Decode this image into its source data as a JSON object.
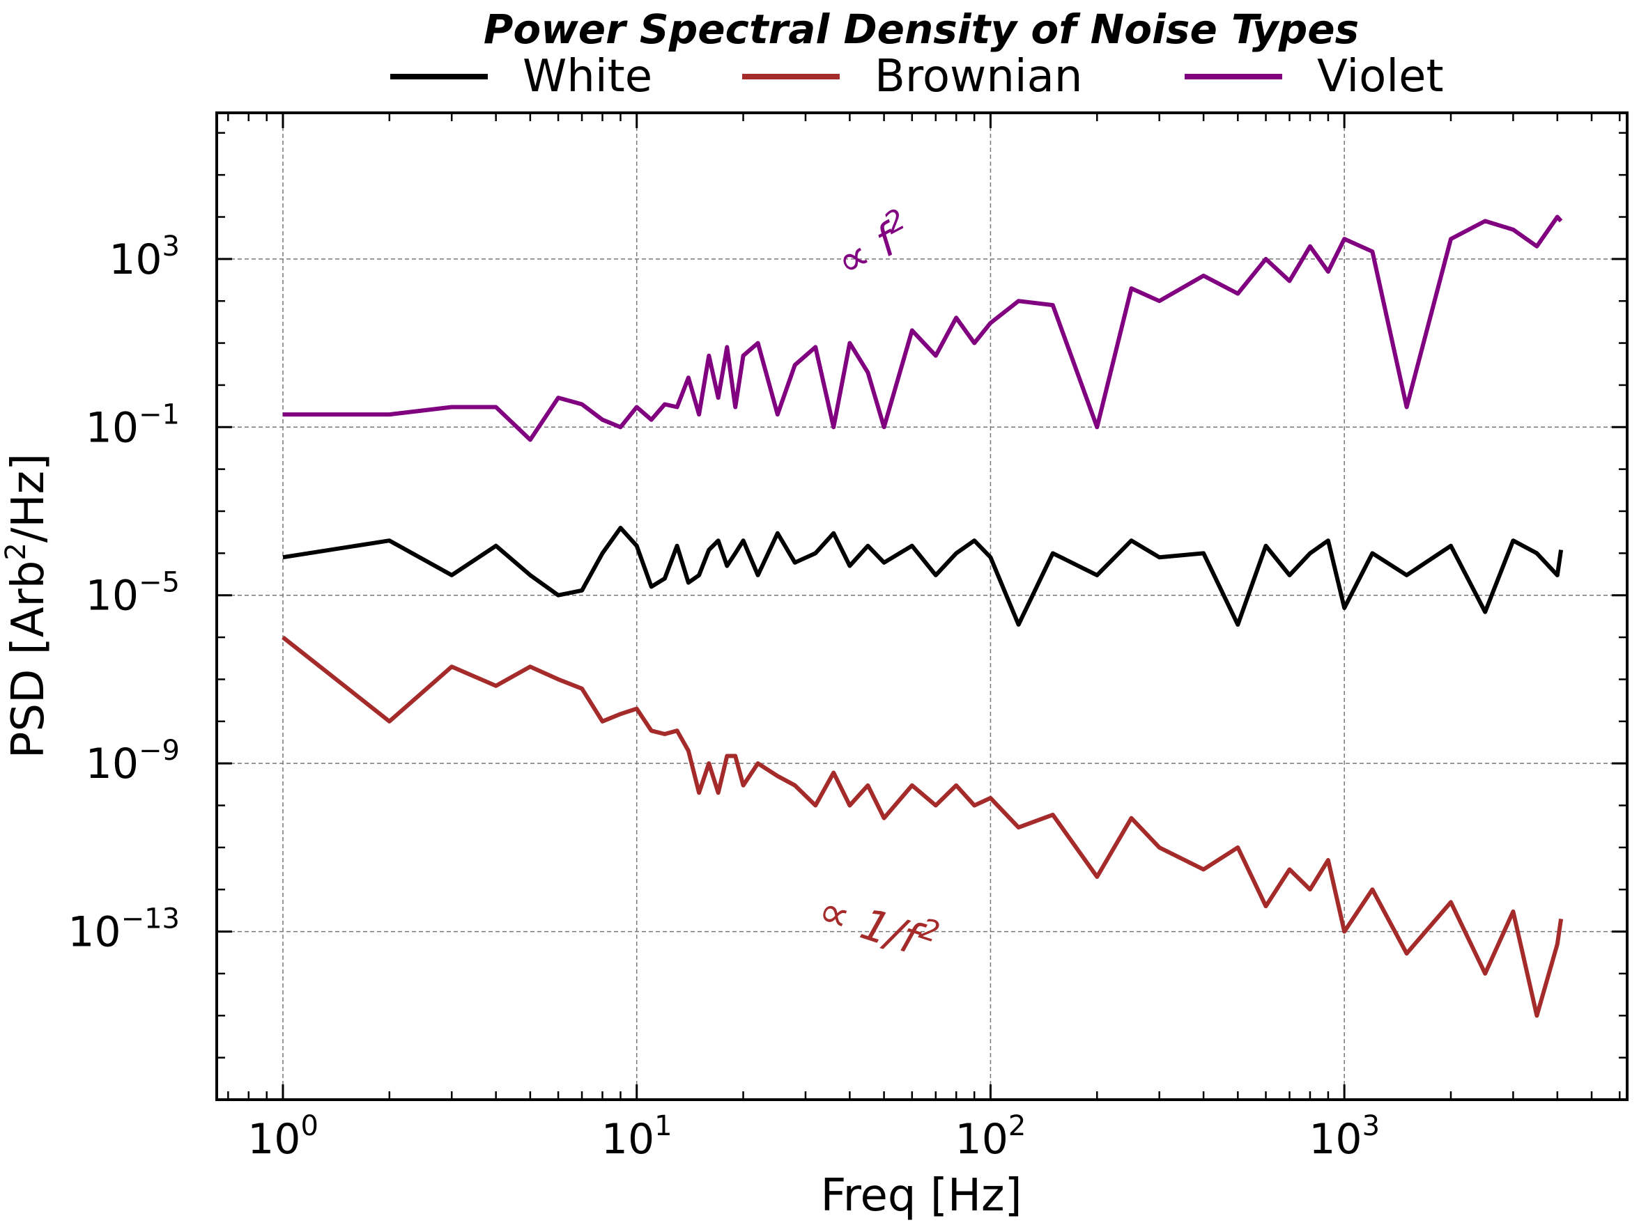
{
  "chart_data": {
    "type": "line",
    "title": "Power Spectral Density of Noise Types",
    "xlabel": "Freq [Hz]",
    "ylabel_main": "PSD [Arb",
    "ylabel_sup": "2",
    "ylabel_tail": "/Hz]",
    "x_scale": "log",
    "y_scale": "log",
    "xlim": [
      0.65,
      6300
    ],
    "ylim": [
      1e-17,
      3000000.0
    ],
    "grid": true,
    "legend_placement": "top-center, above plot",
    "x_ticks": [
      {
        "value": 1,
        "base": "10",
        "exp": "0"
      },
      {
        "value": 10,
        "base": "10",
        "exp": "1"
      },
      {
        "value": 100,
        "base": "10",
        "exp": "2"
      },
      {
        "value": 1000,
        "base": "10",
        "exp": "3"
      }
    ],
    "y_ticks": [
      {
        "value": 1000.0,
        "base": "10",
        "exp": "3"
      },
      {
        "value": 0.1,
        "base": "10",
        "exp": "−1"
      },
      {
        "value": 1e-05,
        "base": "10",
        "exp": "−5"
      },
      {
        "value": 1e-09,
        "base": "10",
        "exp": "−9"
      },
      {
        "value": 1e-13,
        "base": "10",
        "exp": "−13"
      }
    ],
    "series": [
      {
        "name": "White",
        "color": "#000000",
        "x": [
          1,
          2,
          3,
          4,
          5,
          6,
          7,
          8,
          9,
          10,
          11,
          12,
          13,
          14,
          15,
          16,
          17,
          18,
          19,
          20,
          22,
          25,
          28,
          32,
          36,
          40,
          45,
          50,
          60,
          70,
          80,
          90,
          100,
          120,
          150,
          200,
          250,
          300,
          400,
          500,
          600,
          700,
          800,
          900,
          1000,
          1200,
          1500,
          2000,
          2500,
          3000,
          3500,
          4000,
          4096
        ],
        "y": [
          8e-05,
          0.0002,
          3e-05,
          0.00015,
          3e-05,
          1e-05,
          1.3e-05,
          0.0001,
          0.0004,
          0.00015,
          1.6e-05,
          2.5e-05,
          0.00015,
          2e-05,
          3e-05,
          0.00012,
          0.0002,
          5e-05,
          0.0001,
          0.0002,
          3e-05,
          0.0003,
          6e-05,
          0.0001,
          0.0003,
          5e-05,
          0.00015,
          6e-05,
          0.00015,
          3e-05,
          0.0001,
          0.0002,
          8e-05,
          2e-06,
          0.0001,
          3e-05,
          0.0002,
          8e-05,
          0.0001,
          2e-06,
          0.00015,
          3e-05,
          0.0001,
          0.0002,
          5e-06,
          0.0001,
          3e-05,
          0.00015,
          4e-06,
          0.0002,
          0.0001,
          3e-05,
          0.00012
        ]
      },
      {
        "name": "Brownian",
        "color": "#a52a2a",
        "x": [
          1,
          2,
          3,
          4,
          5,
          6,
          7,
          8,
          9,
          10,
          11,
          12,
          13,
          14,
          15,
          16,
          17,
          18,
          19,
          20,
          22,
          25,
          28,
          32,
          36,
          40,
          45,
          50,
          60,
          70,
          80,
          90,
          100,
          120,
          150,
          200,
          250,
          300,
          400,
          500,
          600,
          700,
          800,
          900,
          1000,
          1200,
          1500,
          2000,
          2500,
          3000,
          3500,
          4000,
          4096
        ],
        "y": [
          1e-06,
          1e-08,
          2e-07,
          7e-08,
          2e-07,
          1e-07,
          6e-08,
          1e-08,
          1.5e-08,
          2e-08,
          6e-09,
          5e-09,
          6e-09,
          2e-09,
          2e-10,
          1e-09,
          2e-10,
          1.5e-09,
          1.5e-09,
          3e-10,
          1e-09,
          5e-10,
          3e-10,
          1e-10,
          6e-10,
          1e-10,
          3e-10,
          5e-11,
          3e-10,
          1e-10,
          3e-10,
          1e-10,
          1.5e-10,
          3e-11,
          6e-11,
          2e-12,
          5e-11,
          1e-11,
          3e-12,
          1e-11,
          4e-13,
          3e-12,
          1e-12,
          5e-12,
          1e-13,
          1e-12,
          3e-14,
          5e-13,
          1e-14,
          3e-13,
          1e-15,
          5e-14,
          2e-13
        ]
      },
      {
        "name": "Violet",
        "color": "#800080",
        "x": [
          1,
          2,
          3,
          4,
          5,
          6,
          7,
          8,
          9,
          10,
          11,
          12,
          13,
          14,
          15,
          16,
          17,
          18,
          19,
          20,
          22,
          25,
          28,
          32,
          36,
          40,
          45,
          50,
          60,
          70,
          80,
          90,
          100,
          120,
          150,
          200,
          250,
          300,
          400,
          500,
          600,
          700,
          800,
          900,
          1000,
          1200,
          1500,
          2000,
          2500,
          3000,
          3500,
          4000,
          4096
        ],
        "y": [
          0.2,
          0.2,
          0.3,
          0.3,
          0.05,
          0.5,
          0.35,
          0.15,
          0.1,
          0.3,
          0.15,
          0.35,
          0.3,
          1.5,
          0.2,
          5,
          0.5,
          8,
          0.3,
          5,
          10,
          0.2,
          3,
          8,
          0.1,
          10,
          2,
          0.1,
          20,
          5,
          40,
          10,
          30,
          100,
          80,
          0.1,
          200,
          100,
          400,
          150,
          1000,
          300,
          2000,
          500,
          3000,
          1500,
          0.3,
          3000,
          8000,
          5000,
          2000,
          10000,
          8000
        ]
      }
    ],
    "annotations": [
      {
        "text_pre": "∝ f",
        "sup": "2",
        "color": "#800080",
        "rotation_deg": -28
      },
      {
        "text_pre": "∝ 1/f",
        "sup": "2",
        "color": "#a52a2a",
        "rotation_deg": 18
      }
    ]
  }
}
